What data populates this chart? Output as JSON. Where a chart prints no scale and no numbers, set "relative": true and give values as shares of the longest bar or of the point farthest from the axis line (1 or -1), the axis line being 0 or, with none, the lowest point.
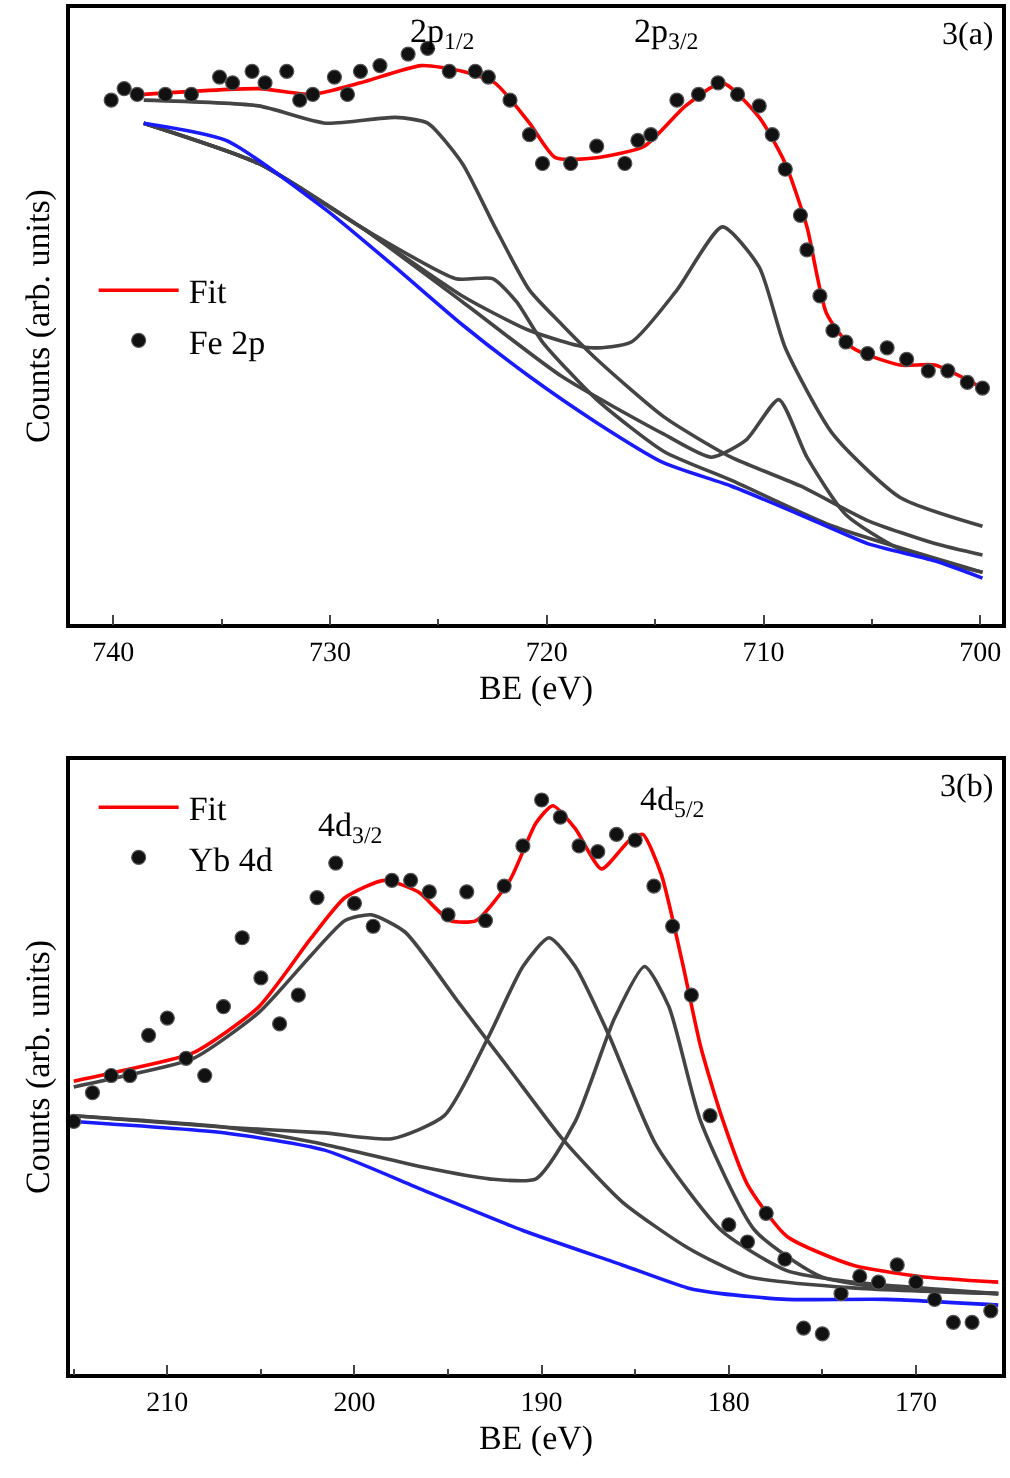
{
  "chart_data": [
    {
      "type": "line",
      "relative": true,
      "xlabel": "BE (eV)",
      "ylabel": "Counts (arb. units)",
      "xlim": [
        742,
        699
      ],
      "xticks": [
        740,
        730,
        720,
        710,
        700
      ],
      "tick_labels": "x",
      "legend": "left",
      "annotations": [
        "2p$_{1/2}$",
        "2p$_{3/2}$",
        "3(a)"
      ],
      "series": [
        {
          "name": "Fe 2p",
          "type": "scatter",
          "marker": "circle",
          "color": "#111111",
          "x": [
            740.1,
            739.5,
            738.9,
            737.6,
            736.4,
            735.1,
            734.5,
            733.6,
            733.0,
            732.0,
            731.4,
            730.8,
            729.8,
            729.2,
            728.6,
            727.7,
            726.4,
            725.5,
            724.5,
            723.3,
            722.7,
            721.7,
            720.8,
            720.2,
            718.9,
            717.7,
            716.4,
            715.8,
            715.2,
            714.0,
            713.0,
            712.1,
            711.2,
            710.2,
            709.6,
            709.0,
            708.3,
            708.0,
            707.4,
            706.8,
            706.2,
            705.2,
            704.3,
            703.4,
            702.4,
            701.5,
            700.6,
            699.9
          ],
          "values": [
            0.91,
            0.93,
            0.92,
            0.92,
            0.92,
            0.95,
            0.94,
            0.96,
            0.94,
            0.96,
            0.91,
            0.92,
            0.95,
            0.92,
            0.96,
            0.97,
            0.99,
            1.0,
            0.96,
            0.96,
            0.95,
            0.91,
            0.85,
            0.8,
            0.8,
            0.83,
            0.8,
            0.84,
            0.85,
            0.91,
            0.92,
            0.94,
            0.92,
            0.9,
            0.85,
            0.79,
            0.71,
            0.65,
            0.57,
            0.51,
            0.49,
            0.47,
            0.48,
            0.46,
            0.44,
            0.44,
            0.42,
            0.41
          ]
        },
        {
          "color": "#444444",
          "x": [
            738.6,
            733.3,
            730.2,
            727.0,
            725.5,
            723.9,
            722.4,
            720.8,
            719.3,
            717.7,
            714.6,
            711.5,
            708.3,
            705.2,
            702.1,
            699.9
          ],
          "values": [
            0.91,
            0.9,
            0.87,
            0.88,
            0.87,
            0.8,
            0.69,
            0.58,
            0.52,
            0.46,
            0.36,
            0.29,
            0.24,
            0.18,
            0.14,
            0.12
          ]
        },
        {
          "color": "#444444",
          "x": [
            738.6,
            733.3,
            728.6,
            724.2,
            722.5,
            721.4,
            720.2,
            717.7,
            714.6,
            711.5,
            706.8,
            699.9
          ],
          "values": [
            0.87,
            0.8,
            0.69,
            0.6,
            0.6,
            0.56,
            0.49,
            0.39,
            0.3,
            0.25,
            0.17,
            0.09
          ]
        },
        {
          "color": "#444444",
          "x": [
            738.6,
            733.3,
            728.6,
            723.9,
            720.8,
            718.0,
            716.1,
            714.0,
            711.9,
            710.2,
            709.0,
            706.8,
            703.7,
            699.9
          ],
          "values": [
            0.87,
            0.8,
            0.69,
            0.57,
            0.51,
            0.48,
            0.49,
            0.58,
            0.69,
            0.62,
            0.48,
            0.33,
            0.22,
            0.17
          ]
        },
        {
          "color": "#444444",
          "x": [
            738.6,
            733.3,
            728.6,
            723.9,
            719.3,
            714.6,
            712.4,
            710.8,
            709.3,
            708.0,
            706.2,
            703.7,
            699.9
          ],
          "values": [
            0.87,
            0.8,
            0.69,
            0.56,
            0.43,
            0.33,
            0.29,
            0.32,
            0.39,
            0.29,
            0.19,
            0.13,
            0.09
          ]
        },
        {
          "color": "#1a1aff",
          "x": [
            738.6,
            734.8,
            730.2,
            727.0,
            723.9,
            720.8,
            717.7,
            714.6,
            711.5,
            708.3,
            705.2,
            702.1,
            699.9
          ],
          "values": [
            0.87,
            0.84,
            0.72,
            0.62,
            0.52,
            0.43,
            0.35,
            0.28,
            0.24,
            0.19,
            0.14,
            0.11,
            0.08
          ]
        },
        {
          "name": "Fit",
          "color": "#ff0000",
          "x": [
            738.6,
            733.3,
            730.8,
            728.6,
            725.8,
            723.9,
            722.4,
            720.8,
            719.6,
            717.7,
            715.5,
            713.6,
            711.9,
            710.2,
            709.0,
            708.0,
            707.1,
            705.9,
            703.7,
            702.1,
            699.9
          ],
          "values": [
            0.92,
            0.93,
            0.92,
            0.94,
            0.97,
            0.96,
            0.94,
            0.87,
            0.81,
            0.81,
            0.83,
            0.9,
            0.94,
            0.88,
            0.8,
            0.69,
            0.54,
            0.48,
            0.45,
            0.45,
            0.41
          ]
        }
      ]
    },
    {
      "type": "line",
      "relative": true,
      "xlabel": "BE (eV)",
      "ylabel": "Counts (arb. units)",
      "xlim": [
        215.2,
        165.4
      ],
      "xticks": [
        210,
        200,
        190,
        180,
        170
      ],
      "tick_labels": "x",
      "legend": "top left",
      "annotations": [
        "4d$_{3/2}$",
        "4d$_{5/2}$",
        "3(b)"
      ],
      "series": [
        {
          "name": "Yb 4d",
          "type": "scatter",
          "marker": "circle",
          "color": "#111111",
          "x": [
            215,
            214,
            213,
            212,
            211,
            210,
            209,
            208,
            207,
            206,
            205,
            204,
            203,
            202,
            201,
            200,
            199,
            198,
            197,
            196,
            195,
            194,
            193,
            192,
            191,
            190,
            189,
            188,
            187,
            186,
            185,
            184,
            183,
            182,
            181,
            180,
            179,
            178,
            177,
            176,
            175,
            174,
            173,
            172,
            171,
            170,
            169,
            168,
            167,
            166
          ],
          "values": [
            0.44,
            0.49,
            0.52,
            0.52,
            0.59,
            0.62,
            0.55,
            0.52,
            0.64,
            0.76,
            0.69,
            0.61,
            0.66,
            0.83,
            0.89,
            0.82,
            0.78,
            0.86,
            0.86,
            0.84,
            0.8,
            0.84,
            0.79,
            0.85,
            0.92,
            1.0,
            0.97,
            0.92,
            0.91,
            0.94,
            0.93,
            0.85,
            0.78,
            0.66,
            0.45,
            0.26,
            0.23,
            0.28,
            0.2,
            0.08,
            0.07,
            0.14,
            0.17,
            0.16,
            0.19,
            0.16,
            0.13,
            0.09,
            0.09,
            0.11
          ]
        },
        {
          "color": "#444444",
          "x": [
            215.0,
            212.2,
            208.6,
            205.1,
            202.3,
            200.5,
            199.1,
            197.3,
            194.5,
            191.7,
            188.9,
            185.7,
            182.2,
            179.0,
            173.4,
            165.6
          ],
          "values": [
            0.5,
            0.52,
            0.55,
            0.63,
            0.73,
            0.79,
            0.8,
            0.77,
            0.65,
            0.53,
            0.41,
            0.3,
            0.22,
            0.17,
            0.15,
            0.14
          ]
        },
        {
          "color": "#444444",
          "x": [
            215.0,
            206.9,
            201.6,
            198.0,
            195.2,
            192.8,
            191.0,
            189.6,
            188.2,
            186.4,
            183.9,
            180.4,
            176.9,
            173.4,
            165.6
          ],
          "values": [
            0.45,
            0.43,
            0.42,
            0.41,
            0.45,
            0.59,
            0.71,
            0.76,
            0.71,
            0.59,
            0.4,
            0.25,
            0.18,
            0.16,
            0.14
          ]
        },
        {
          "color": "#444444",
          "x": [
            215.0,
            206.9,
            201.6,
            196.3,
            192.8,
            190.3,
            188.2,
            186.1,
            184.5,
            183.2,
            181.5,
            178.6,
            175.1,
            171.6,
            165.6
          ],
          "values": [
            0.45,
            0.43,
            0.4,
            0.36,
            0.34,
            0.34,
            0.44,
            0.62,
            0.71,
            0.64,
            0.44,
            0.25,
            0.17,
            0.15,
            0.14
          ]
        },
        {
          "color": "#1a1aff",
          "x": [
            215.0,
            206.9,
            201.6,
            196.3,
            191.0,
            185.7,
            182.2,
            180.4,
            176.9,
            171.6,
            165.6
          ],
          "values": [
            0.44,
            0.42,
            0.39,
            0.32,
            0.25,
            0.19,
            0.15,
            0.14,
            0.13,
            0.13,
            0.12
          ]
        },
        {
          "name": "Fit",
          "color": "#ff0000",
          "x": [
            215.0,
            212.2,
            208.6,
            205.1,
            202.3,
            200.5,
            198.4,
            196.6,
            194.9,
            193.5,
            191.7,
            190.3,
            189.4,
            188.2,
            186.8,
            185.3,
            184.6,
            183.6,
            182.5,
            181.5,
            180.4,
            179.0,
            176.9,
            173.4,
            169.8,
            165.6
          ],
          "values": [
            0.51,
            0.53,
            0.56,
            0.64,
            0.76,
            0.83,
            0.86,
            0.84,
            0.79,
            0.79,
            0.86,
            0.96,
            0.99,
            0.95,
            0.88,
            0.93,
            0.94,
            0.87,
            0.72,
            0.57,
            0.45,
            0.33,
            0.24,
            0.19,
            0.17,
            0.16
          ]
        }
      ]
    }
  ]
}
